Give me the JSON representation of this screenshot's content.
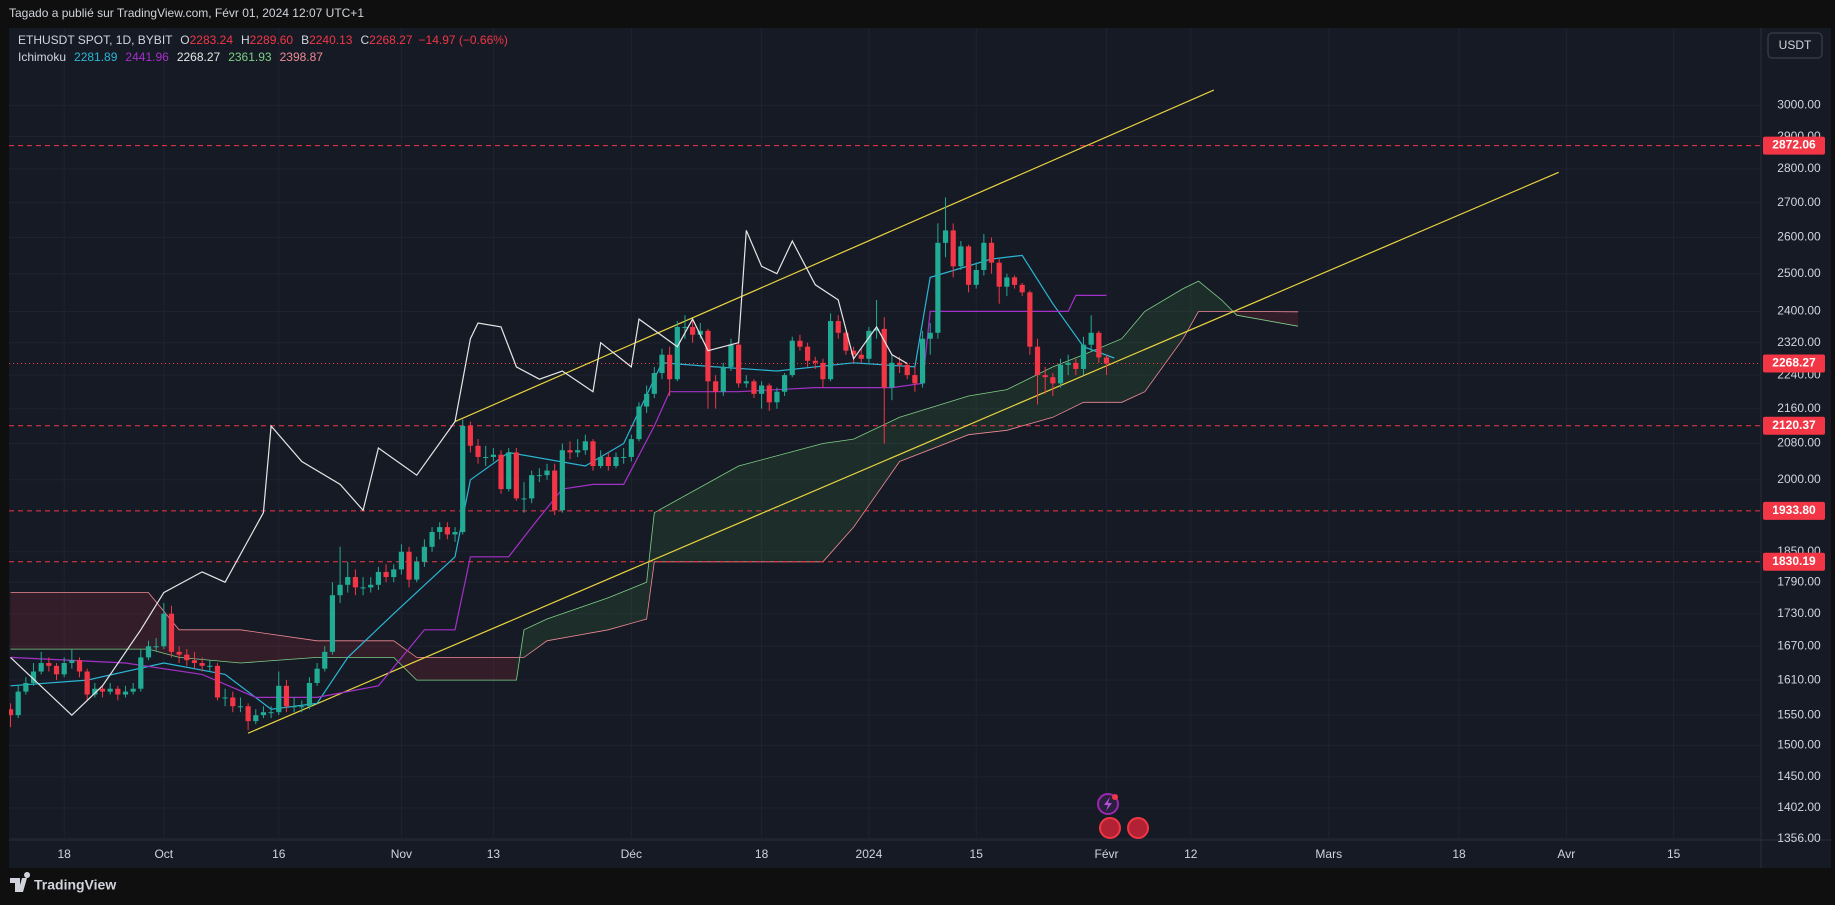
{
  "header": {
    "title": "Tagado a publié sur TradingView.com, Févr 01, 2024 12:07 UTC+1",
    "currency_button": "USDT",
    "footer": "TradingView"
  },
  "chart_data": {
    "type": "candlestick",
    "symbol": "ETHUSDT SPOT, 1D, BYBIT",
    "ohlc_legend": [
      {
        "label": "O",
        "value": "2283.24"
      },
      {
        "label": "H",
        "value": "2289.60"
      },
      {
        "label": "B",
        "value": "2240.13"
      },
      {
        "label": "C",
        "value": "2268.27"
      }
    ],
    "change": "−14.97 (−0.66%)",
    "up_color": "#22ab94",
    "down_color": "#f23645",
    "log_scale": true,
    "grid": true,
    "xlim": [
      -20.2,
      208.4
    ],
    "ylim": [
      1354,
      3262
    ],
    "xticks": [
      {
        "value": -13,
        "label": "18"
      },
      {
        "value": 0,
        "label": "Oct"
      },
      {
        "value": 15,
        "label": "16"
      },
      {
        "value": 31,
        "label": "Nov"
      },
      {
        "value": 43,
        "label": "13"
      },
      {
        "value": 61,
        "label": "Déc"
      },
      {
        "value": 78,
        "label": "18"
      },
      {
        "value": 92,
        "label": "2024"
      },
      {
        "value": 106,
        "label": "15"
      },
      {
        "value": 123,
        "label": "Févr"
      },
      {
        "value": 134,
        "label": "12"
      },
      {
        "value": 152,
        "label": "Mars"
      },
      {
        "value": 169,
        "label": "18"
      },
      {
        "value": 183,
        "label": "Avr"
      },
      {
        "value": 197,
        "label": "15"
      }
    ],
    "yticks": [
      {
        "value": 3000,
        "label": "3000.00"
      },
      {
        "value": 2900,
        "label": "2900.00"
      },
      {
        "value": 2800,
        "label": "2800.00"
      },
      {
        "value": 2700,
        "label": "2700.00"
      },
      {
        "value": 2600,
        "label": "2600.00"
      },
      {
        "value": 2500,
        "label": "2500.00"
      },
      {
        "value": 2400,
        "label": "2400.00"
      },
      {
        "value": 2320,
        "label": "2320.00"
      },
      {
        "value": 2240,
        "label": "2240.00"
      },
      {
        "value": 2160,
        "label": "2160.00"
      },
      {
        "value": 2080,
        "label": "2080.00"
      },
      {
        "value": 2000,
        "label": "2000.00"
      },
      {
        "value": 1850,
        "label": "1850.00"
      },
      {
        "value": 1790,
        "label": "1790.00"
      },
      {
        "value": 1730,
        "label": "1730.00"
      },
      {
        "value": 1670,
        "label": "1670.00"
      },
      {
        "value": 1610,
        "label": "1610.00"
      },
      {
        "value": 1550,
        "label": "1550.00"
      },
      {
        "value": 1500,
        "label": "1500.00"
      },
      {
        "value": 1450,
        "label": "1450.00"
      },
      {
        "value": 1402,
        "label": "1402.00"
      },
      {
        "value": 1356,
        "label": "1356.00"
      }
    ],
    "x": [
      -20,
      -19,
      -18,
      -17,
      -16,
      -15,
      -14,
      -13,
      -12,
      -11,
      -10,
      -9,
      -8,
      -7,
      -6,
      -5,
      -4,
      -3,
      -2,
      -1,
      0,
      1,
      2,
      3,
      4,
      5,
      6,
      7,
      8,
      9,
      10,
      11,
      12,
      13,
      14,
      15,
      16,
      17,
      18,
      19,
      20,
      21,
      22,
      23,
      24,
      25,
      26,
      27,
      28,
      29,
      30,
      31,
      32,
      33,
      34,
      35,
      36,
      37,
      38,
      39,
      40,
      41,
      42,
      43,
      44,
      45,
      46,
      47,
      48,
      49,
      50,
      51,
      52,
      53,
      54,
      55,
      56,
      57,
      58,
      59,
      60,
      61,
      62,
      63,
      64,
      65,
      66,
      67,
      68,
      69,
      70,
      71,
      72,
      73,
      74,
      75,
      76,
      77,
      78,
      79,
      80,
      81,
      82,
      83,
      84,
      85,
      86,
      87,
      88,
      89,
      90,
      91,
      92,
      93,
      94,
      95,
      96,
      97,
      98,
      99,
      100,
      101,
      102,
      103,
      104,
      105,
      106,
      107,
      108,
      109,
      110,
      111,
      112,
      113,
      114,
      115,
      116,
      117,
      118,
      119,
      120,
      121,
      122,
      123
    ],
    "open": [
      1560,
      1550,
      1590,
      1605,
      1625,
      1640,
      1635,
      1620,
      1640,
      1645,
      1625,
      1585,
      1595,
      1590,
      1595,
      1585,
      1590,
      1595,
      1650,
      1670,
      1670,
      1730,
      1660,
      1655,
      1645,
      1640,
      1635,
      1635,
      1580,
      1580,
      1565,
      1565,
      1540,
      1550,
      1555,
      1555,
      1600,
      1565,
      1565,
      1565,
      1605,
      1630,
      1660,
      1765,
      1785,
      1800,
      1780,
      1780,
      1785,
      1810,
      1800,
      1815,
      1850,
      1795,
      1830,
      1860,
      1890,
      1900,
      1885,
      1890,
      2120,
      2075,
      2050,
      2050,
      2055,
      1980,
      2060,
      1960,
      1960,
      2010,
      2010,
      2020,
      1935,
      2065,
      2060,
      2065,
      2085,
      2030,
      2050,
      2030,
      2050,
      2050,
      2090,
      2165,
      2195,
      2245,
      2290,
      2230,
      2360,
      2360,
      2340,
      2350,
      2225,
      2200,
      2260,
      2315,
      2220,
      2225,
      2195,
      2215,
      2175,
      2200,
      2240,
      2325,
      2310,
      2275,
      2270,
      2230,
      2375,
      2345,
      2300,
      2290,
      2280,
      2350,
      2355,
      2210,
      2270,
      2265,
      2240,
      2220,
      2330,
      2345,
      2585,
      2620,
      2520,
      2575,
      2470,
      2510,
      2585,
      2530,
      2465,
      2490,
      2470,
      2450,
      2310,
      2240,
      2235,
      2220,
      2265,
      2270,
      2255,
      2315,
      2345,
      2283.24
    ],
    "high": [
      1570,
      1600,
      1615,
      1640,
      1660,
      1650,
      1640,
      1650,
      1665,
      1650,
      1630,
      1605,
      1600,
      1605,
      1600,
      1600,
      1605,
      1665,
      1680,
      1685,
      1750,
      1745,
      1670,
      1665,
      1660,
      1650,
      1645,
      1640,
      1595,
      1590,
      1580,
      1570,
      1560,
      1565,
      1565,
      1625,
      1610,
      1580,
      1575,
      1615,
      1640,
      1670,
      1790,
      1860,
      1830,
      1815,
      1800,
      1800,
      1820,
      1825,
      1825,
      1865,
      1860,
      1840,
      1875,
      1900,
      1910,
      1910,
      1900,
      2135,
      2130,
      2090,
      2075,
      2070,
      2065,
      2070,
      2070,
      1995,
      2020,
      2025,
      2035,
      2035,
      2080,
      2085,
      2090,
      2100,
      2090,
      2065,
      2060,
      2060,
      2070,
      2100,
      2175,
      2215,
      2260,
      2305,
      2310,
      2375,
      2390,
      2380,
      2370,
      2355,
      2240,
      2270,
      2330,
      2320,
      2240,
      2230,
      2225,
      2220,
      2210,
      2245,
      2335,
      2340,
      2320,
      2285,
      2280,
      2395,
      2390,
      2350,
      2310,
      2305,
      2360,
      2430,
      2385,
      2290,
      2285,
      2270,
      2260,
      2350,
      2370,
      2640,
      2715,
      2640,
      2590,
      2580,
      2530,
      2610,
      2600,
      2540,
      2500,
      2495,
      2475,
      2455,
      2330,
      2260,
      2245,
      2280,
      2290,
      2280,
      2335,
      2390,
      2350,
      2289.6
    ],
    "low": [
      1530,
      1545,
      1585,
      1600,
      1620,
      1625,
      1610,
      1615,
      1630,
      1615,
      1575,
      1580,
      1580,
      1585,
      1575,
      1580,
      1585,
      1590,
      1645,
      1660,
      1665,
      1650,
      1640,
      1635,
      1630,
      1625,
      1625,
      1575,
      1565,
      1555,
      1555,
      1525,
      1535,
      1545,
      1545,
      1550,
      1555,
      1555,
      1555,
      1560,
      1600,
      1625,
      1655,
      1750,
      1770,
      1765,
      1765,
      1770,
      1775,
      1790,
      1790,
      1805,
      1780,
      1790,
      1820,
      1850,
      1875,
      1875,
      1870,
      1885,
      2060,
      2035,
      2030,
      2040,
      1970,
      1975,
      1955,
      1930,
      1950,
      1995,
      2000,
      1925,
      1930,
      2045,
      2050,
      2055,
      2020,
      2025,
      2020,
      2025,
      2035,
      2040,
      2085,
      2150,
      2185,
      2230,
      2190,
      2225,
      2330,
      2320,
      2330,
      2160,
      2160,
      2190,
      2250,
      2210,
      2210,
      2185,
      2160,
      2155,
      2160,
      2190,
      2235,
      2300,
      2260,
      2255,
      2210,
      2225,
      2330,
      2290,
      2270,
      2270,
      2270,
      2330,
      2080,
      2180,
      2245,
      2230,
      2200,
      2210,
      2290,
      2330,
      2545,
      2490,
      2510,
      2450,
      2460,
      2495,
      2500,
      2420,
      2440,
      2460,
      2440,
      2290,
      2170,
      2195,
      2190,
      2210,
      2240,
      2240,
      2240,
      2300,
      2270,
      2240.13
    ],
    "close": [
      1550,
      1590,
      1605,
      1625,
      1640,
      1635,
      1620,
      1640,
      1645,
      1625,
      1585,
      1595,
      1590,
      1595,
      1585,
      1590,
      1595,
      1650,
      1670,
      1670,
      1730,
      1660,
      1655,
      1645,
      1640,
      1635,
      1635,
      1580,
      1580,
      1565,
      1565,
      1540,
      1550,
      1555,
      1555,
      1600,
      1565,
      1565,
      1565,
      1605,
      1630,
      1660,
      1765,
      1785,
      1800,
      1780,
      1780,
      1785,
      1810,
      1800,
      1815,
      1850,
      1795,
      1830,
      1860,
      1890,
      1900,
      1885,
      1890,
      2120,
      2075,
      2050,
      2050,
      2055,
      1980,
      2060,
      1960,
      1960,
      2010,
      2010,
      2020,
      1935,
      2065,
      2060,
      2065,
      2085,
      2030,
      2050,
      2030,
      2050,
      2050,
      2090,
      2165,
      2195,
      2245,
      2290,
      2230,
      2360,
      2360,
      2340,
      2350,
      2225,
      2200,
      2260,
      2315,
      2220,
      2225,
      2195,
      2215,
      2175,
      2200,
      2240,
      2325,
      2310,
      2275,
      2270,
      2230,
      2375,
      2345,
      2300,
      2290,
      2280,
      2350,
      2355,
      2210,
      2270,
      2265,
      2240,
      2220,
      2330,
      2345,
      2585,
      2620,
      2520,
      2575,
      2470,
      2510,
      2585,
      2530,
      2465,
      2490,
      2470,
      2450,
      2310,
      2240,
      2235,
      2220,
      2265,
      2270,
      2255,
      2315,
      2345,
      2283.24,
      2268.27
    ],
    "ichimoku_label": "Ichimoku",
    "ichimoku_lines": [
      {
        "color": "#2ab6d4",
        "legend": "2281.89",
        "x": [
          -20,
          -10,
          0,
          8,
          14,
          20,
          24,
          30,
          38,
          40,
          45,
          55,
          60,
          65,
          72,
          80,
          90,
          98,
          100,
          108,
          112,
          116,
          120,
          124
        ],
        "values": [
          1600,
          1610,
          1640,
          1620,
          1560,
          1570,
          1650,
          1730,
          1840,
          2000,
          2060,
          2030,
          2080,
          2270,
          2260,
          2250,
          2270,
          2260,
          2490,
          2540,
          2550,
          2420,
          2310,
          2281.89
        ]
      },
      {
        "color": "#a530c9",
        "legend": "2441.96",
        "x": [
          -20,
          -5,
          5,
          12,
          20,
          28,
          34,
          38,
          40,
          45,
          48,
          52,
          56,
          60,
          64,
          66,
          75,
          85,
          95,
          99,
          100,
          118,
          119,
          123
        ],
        "values": [
          1650,
          1640,
          1620,
          1580,
          1580,
          1600,
          1700,
          1700,
          1840,
          1840,
          1900,
          1980,
          1990,
          1990,
          2120,
          2200,
          2200,
          2210,
          2210,
          2220,
          2400,
          2400,
          2442,
          2441.96
        ]
      },
      {
        "color": "#e6e6e6",
        "legend": "2268.27",
        "x": [
          -20,
          -12,
          -8,
          -3,
          0,
          5,
          8,
          13,
          14,
          18,
          23,
          26,
          28,
          33,
          38,
          40,
          41,
          44,
          46,
          49,
          52,
          56,
          57,
          61,
          62,
          67,
          69,
          71,
          75,
          76,
          78,
          80,
          82,
          85,
          88,
          90,
          93,
          95,
          97
        ],
        "values": [
          1650,
          1550,
          1600,
          1700,
          1770,
          1810,
          1790,
          1930,
          2120,
          2040,
          1990,
          1935,
          2070,
          2010,
          2130,
          2330,
          2370,
          2360,
          2260,
          2230,
          2250,
          2200,
          2320,
          2260,
          2380,
          2310,
          2380,
          2300,
          2320,
          2620,
          2520,
          2500,
          2590,
          2470,
          2430,
          2280,
          2360,
          2290,
          2268.27
        ]
      }
    ],
    "cloud": {
      "color_a": "#7fcf86",
      "color_b": "#f08a95",
      "legend_a": "2361.93",
      "legend_b": "2398.87",
      "x": [
        -20,
        -2,
        2,
        10,
        20,
        30,
        33,
        46,
        47,
        50,
        58,
        63,
        64,
        75,
        86,
        90,
        96,
        105,
        110,
        116,
        120,
        125,
        128,
        133,
        135,
        138,
        140,
        148
      ],
      "span_a": [
        1665,
        1665,
        1650,
        1640,
        1650,
        1650,
        1610,
        1610,
        1700,
        1720,
        1760,
        1790,
        1930,
        2030,
        2080,
        2090,
        2140,
        2190,
        2205,
        2260,
        2290,
        2330,
        2400,
        2460,
        2480,
        2430,
        2390,
        2361.93
      ],
      "span_b": [
        1770,
        1770,
        1700,
        1700,
        1680,
        1680,
        1650,
        1650,
        1650,
        1680,
        1700,
        1720,
        1830,
        1830,
        1830,
        1900,
        2040,
        2100,
        2110,
        2140,
        2175,
        2175,
        2200,
        2330,
        2400,
        2400,
        2400,
        2398.87
      ]
    },
    "trendlines": [
      {
        "color": "#e8d33f",
        "x": [
          38,
          137
        ],
        "values": [
          2130,
          3050
        ]
      },
      {
        "color": "#e8d33f",
        "x": [
          11,
          182
        ],
        "values": [
          1520,
          2790
        ]
      }
    ],
    "hlines": [
      {
        "value": 2872.06,
        "label": "2872.06",
        "style": "dashed"
      },
      {
        "value": 2268.27,
        "label": "2268.27",
        "style": "dotted"
      },
      {
        "value": 2120.37,
        "label": "2120.37",
        "style": "dashed"
      },
      {
        "value": 1933.8,
        "label": "1933.80",
        "style": "dashed"
      },
      {
        "value": 1830.19,
        "label": "1830.19",
        "style": "dashed"
      }
    ],
    "hline_color": "#f23645"
  }
}
